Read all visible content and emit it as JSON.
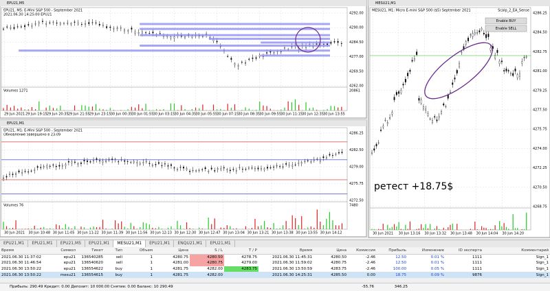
{
  "windows": [
    {
      "title": "EPU21,M5",
      "info": "EPU21, M5: E-Mini S&P 500 - September 2021",
      "sub": "2021.06.30 14:25:00 EPU21",
      "volumes": "Volumes 1271",
      "prices": [
        "4292.00",
        "4290.00",
        "4284.50",
        "4277.00",
        "4269.50",
        "4262.00"
      ],
      "volume_max": "20861",
      "times": [
        "29 Jun 2021",
        "29 Jun 19:15",
        "29 Jun 20:35",
        "29 Jun 21:55",
        "29 Jun 23:15",
        "30 Jun 00:35",
        "30 Jun 01:55",
        "30 Jun 03:15",
        "30 Jun 04:35",
        "30 Jun 05:55",
        "30 Jun 07:15",
        "30 Jun 08:35",
        "30 Jun 09:55",
        "30 Jun 11:15",
        "30 Jun 12:35",
        "30 Jun 13:55"
      ]
    },
    {
      "title": "EPU21,M1",
      "info": "EPU21, M1: E-Mini S&P 500 - September 2021",
      "sub": "Обновление завершено в 23:09",
      "volumes": "Volumes 76",
      "prices": [
        "4286.25",
        "4282.50",
        "4279.00",
        "4275.75",
        "4272.50"
      ],
      "volume_max": "7480",
      "times": [
        "30 Jun 2021",
        "30 Jun 10:48",
        "30 Jun 11:05",
        "30 Jun 11:22",
        "30 Jun 11:39",
        "30 Jun 11:56",
        "30 Jun 12:13",
        "30 Jun 12:30",
        "30 Jun 12:47",
        "30 Jun 13:04",
        "30 Jun 13:21",
        "30 Jun 13:38",
        "30 Jun 13:55",
        "30 Jun 14:12"
      ]
    },
    {
      "title": "MESU21,M1",
      "info": "MESU21, M1: Micro E-mini S&P 500 ($5) September 2021",
      "ea": "Scalp_2_EA_Sense",
      "buttons": [
        "Enable BUY",
        "Enable SELL"
      ],
      "annotation": "ретест +18.75$",
      "prices": [
        "4286.25",
        "4284.50",
        "4282.75",
        "4281.00",
        "4279.25",
        "4277.50",
        "4275.75",
        "4274.00",
        "4272.25",
        "4270.50",
        "4268.75"
      ],
      "times": [
        "30 Jun 2021",
        "30 Jun 13:16",
        "30 Jun 13:32",
        "30 Jun 13:48",
        "30 Jun 14:04",
        "30 Jun 14:20"
      ]
    }
  ],
  "tabs": [
    "EPU21,M1",
    "EPU21,M1",
    "EPU21,M5",
    "EPU21,M1",
    "MESU21,M1",
    "EPU21,M1",
    "ENQU21,M1",
    "EPU21,M1"
  ],
  "table": {
    "header": [
      "Время",
      "Символ",
      "Тикет",
      "Тип",
      "Объем",
      "Цена",
      "S / L",
      "T / P",
      "Время",
      "Цена",
      "Комиссия",
      "Прибыль",
      "Изменение",
      "ID эксперта",
      "Комментарий"
    ],
    "rows": [
      [
        "2021.06.30 11:37:02",
        "epu21",
        "136540285",
        "sell",
        "1",
        "4280.75",
        "4280.50",
        "4278.75",
        "2021.06.30 11:45:31",
        "4280.50",
        "-2.46",
        "12.50",
        "0.01 %",
        "1111",
        "Sign_1"
      ],
      [
        "2021.06.30 11:46:54",
        "epu21",
        "136540620",
        "sell",
        "1",
        "4281.00",
        "4280.75",
        "4279.00",
        "2021.06.30 11:59:02",
        "4280.75",
        "-2.46",
        "12.50",
        "0.01 %",
        "1111",
        "Sign_1"
      ],
      [
        "2021.06.30 13:50:22",
        "epu21",
        "136554622",
        "buy",
        "1",
        "4281.75",
        "4282.00",
        "4283.75",
        "2021.06.30 13:50:59",
        "4283.75",
        "-2.46",
        "100.00",
        "0.05 %",
        "1111",
        "Sign_1"
      ],
      [
        "2021.06.30 13:50:22",
        "mesu21",
        "136554615",
        "buy",
        "1",
        "4281.75",
        "4282.00",
        null,
        "2021.06.30 14:25:31",
        "4285.50",
        "0.00",
        "18.75",
        "0.09 %",
        "9876",
        "Sign_1"
      ]
    ],
    "footer": "Прибыль: 290.49  Кредит: 0.00  Депозит: 10 000.00  Снятие: 0.00  Баланс: 10 290.49",
    "footer_commission": "-55.76",
    "footer_profit": "346.25"
  }
}
